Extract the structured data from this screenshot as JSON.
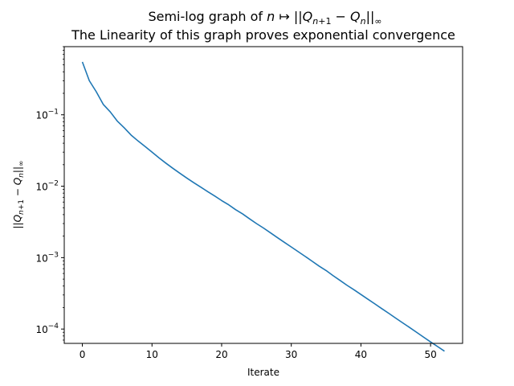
{
  "chart_data": {
    "type": "line",
    "title_prefix": "Semi-log graph of ",
    "title_math": "n ↦ ||Q_{n+1} − Q_n||_∞",
    "subtitle": "The Linearity of this graph proves exponential convergence",
    "xlabel": "Iterate",
    "ylabel": "||Q_{n+1} − Q_n||_∞",
    "yscale": "log",
    "xlim": [
      -2.6,
      54.6
    ],
    "ylim": [
      6.3e-05,
      0.9
    ],
    "xticks": [
      0,
      10,
      20,
      30,
      40,
      50
    ],
    "yticks": [
      0.0001,
      0.001,
      0.01,
      0.1
    ],
    "ytick_labels": [
      "10^-4",
      "10^-3",
      "10^-2",
      "10^-1"
    ],
    "grid": false,
    "color": "#1f77b4",
    "series": [
      {
        "x": [
          0,
          1,
          2,
          3,
          4,
          5,
          6,
          7,
          8,
          9,
          10,
          11,
          12,
          13,
          14,
          15,
          16,
          17,
          18,
          19,
          20,
          21,
          22,
          23,
          24,
          25,
          26,
          27,
          28,
          29,
          30,
          31,
          32,
          33,
          34,
          35,
          36,
          37,
          38,
          39,
          40,
          41,
          42,
          43,
          44,
          45,
          46,
          47,
          48,
          49,
          50,
          51,
          52
        ],
        "y": [
          0.55,
          0.3,
          0.21,
          0.14,
          0.11,
          0.082,
          0.066,
          0.052,
          0.043,
          0.036,
          0.03,
          0.025,
          0.021,
          0.0178,
          0.0152,
          0.013,
          0.0112,
          0.0097,
          0.0084,
          0.0073,
          0.0063,
          0.0055,
          0.0047,
          0.0041,
          0.0035,
          0.003,
          0.0026,
          0.00223,
          0.00191,
          0.00164,
          0.00141,
          0.00121,
          0.00104,
          0.00089,
          0.00076,
          0.00066,
          0.00056,
          0.00048,
          0.00041,
          0.000355,
          0.000305,
          0.000262,
          0.000225,
          0.000193,
          0.000166,
          0.000142,
          0.000122,
          0.000105,
          9e-05,
          7.7e-05,
          6.6e-05,
          5.7e-05,
          4.9e-05
        ]
      }
    ]
  }
}
